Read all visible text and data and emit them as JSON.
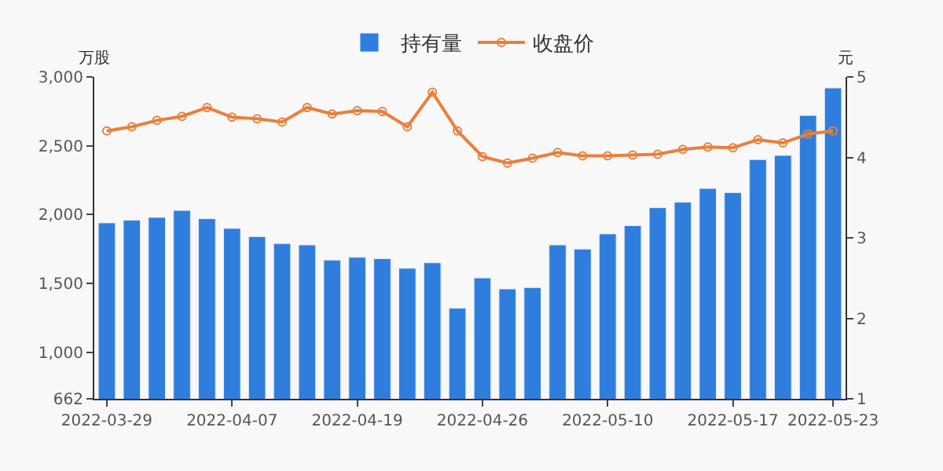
{
  "chart_data": {
    "type": "bar",
    "ylabel": "万股",
    "y2label": "元",
    "categories": [
      "2022-03-29",
      null,
      null,
      null,
      null,
      "2022-04-07",
      null,
      null,
      null,
      null,
      "2022-04-19",
      null,
      null,
      null,
      null,
      "2022-04-26",
      null,
      null,
      null,
      null,
      "2022-05-10",
      null,
      null,
      null,
      null,
      "2022-05-17",
      null,
      null,
      null,
      "2022-05-23"
    ],
    "series": [
      {
        "name": "持有量",
        "color": "#2f7ede",
        "values": [
          1940,
          1960,
          1980,
          2030,
          1970,
          1900,
          1840,
          1790,
          1780,
          1670,
          1690,
          1680,
          1610,
          1650,
          1320,
          1540,
          1460,
          1470,
          1780,
          1750,
          1860,
          1920,
          2050,
          2090,
          2190,
          2160,
          2400,
          2430,
          2720,
          2920
        ]
      },
      {
        "name": "收盘价",
        "type": "line",
        "axis": "y2",
        "color": "#e8803c",
        "marker": "circle",
        "values": [
          4.33,
          4.38,
          4.46,
          4.51,
          4.62,
          4.5,
          4.48,
          4.44,
          4.62,
          4.54,
          4.58,
          4.57,
          4.38,
          4.81,
          4.33,
          4.01,
          3.93,
          3.99,
          4.06,
          4.02,
          4.02,
          4.03,
          4.04,
          4.1,
          4.13,
          4.12,
          4.22,
          4.18,
          4.29,
          4.33
        ]
      }
    ],
    "ylim": [
      662,
      3000
    ],
    "yticks": [
      662,
      {
        "value": 1000,
        "label": "1,000"
      },
      {
        "value": 1500,
        "label": "1,500"
      },
      {
        "value": 2000,
        "label": "2,000"
      },
      {
        "value": 2500,
        "label": "2,500"
      },
      {
        "value": 3000,
        "label": "3,000"
      }
    ],
    "y2lim": [
      1,
      5
    ],
    "y2ticks": [
      1,
      2,
      3,
      4,
      5
    ],
    "grid": false,
    "legend": "top"
  }
}
